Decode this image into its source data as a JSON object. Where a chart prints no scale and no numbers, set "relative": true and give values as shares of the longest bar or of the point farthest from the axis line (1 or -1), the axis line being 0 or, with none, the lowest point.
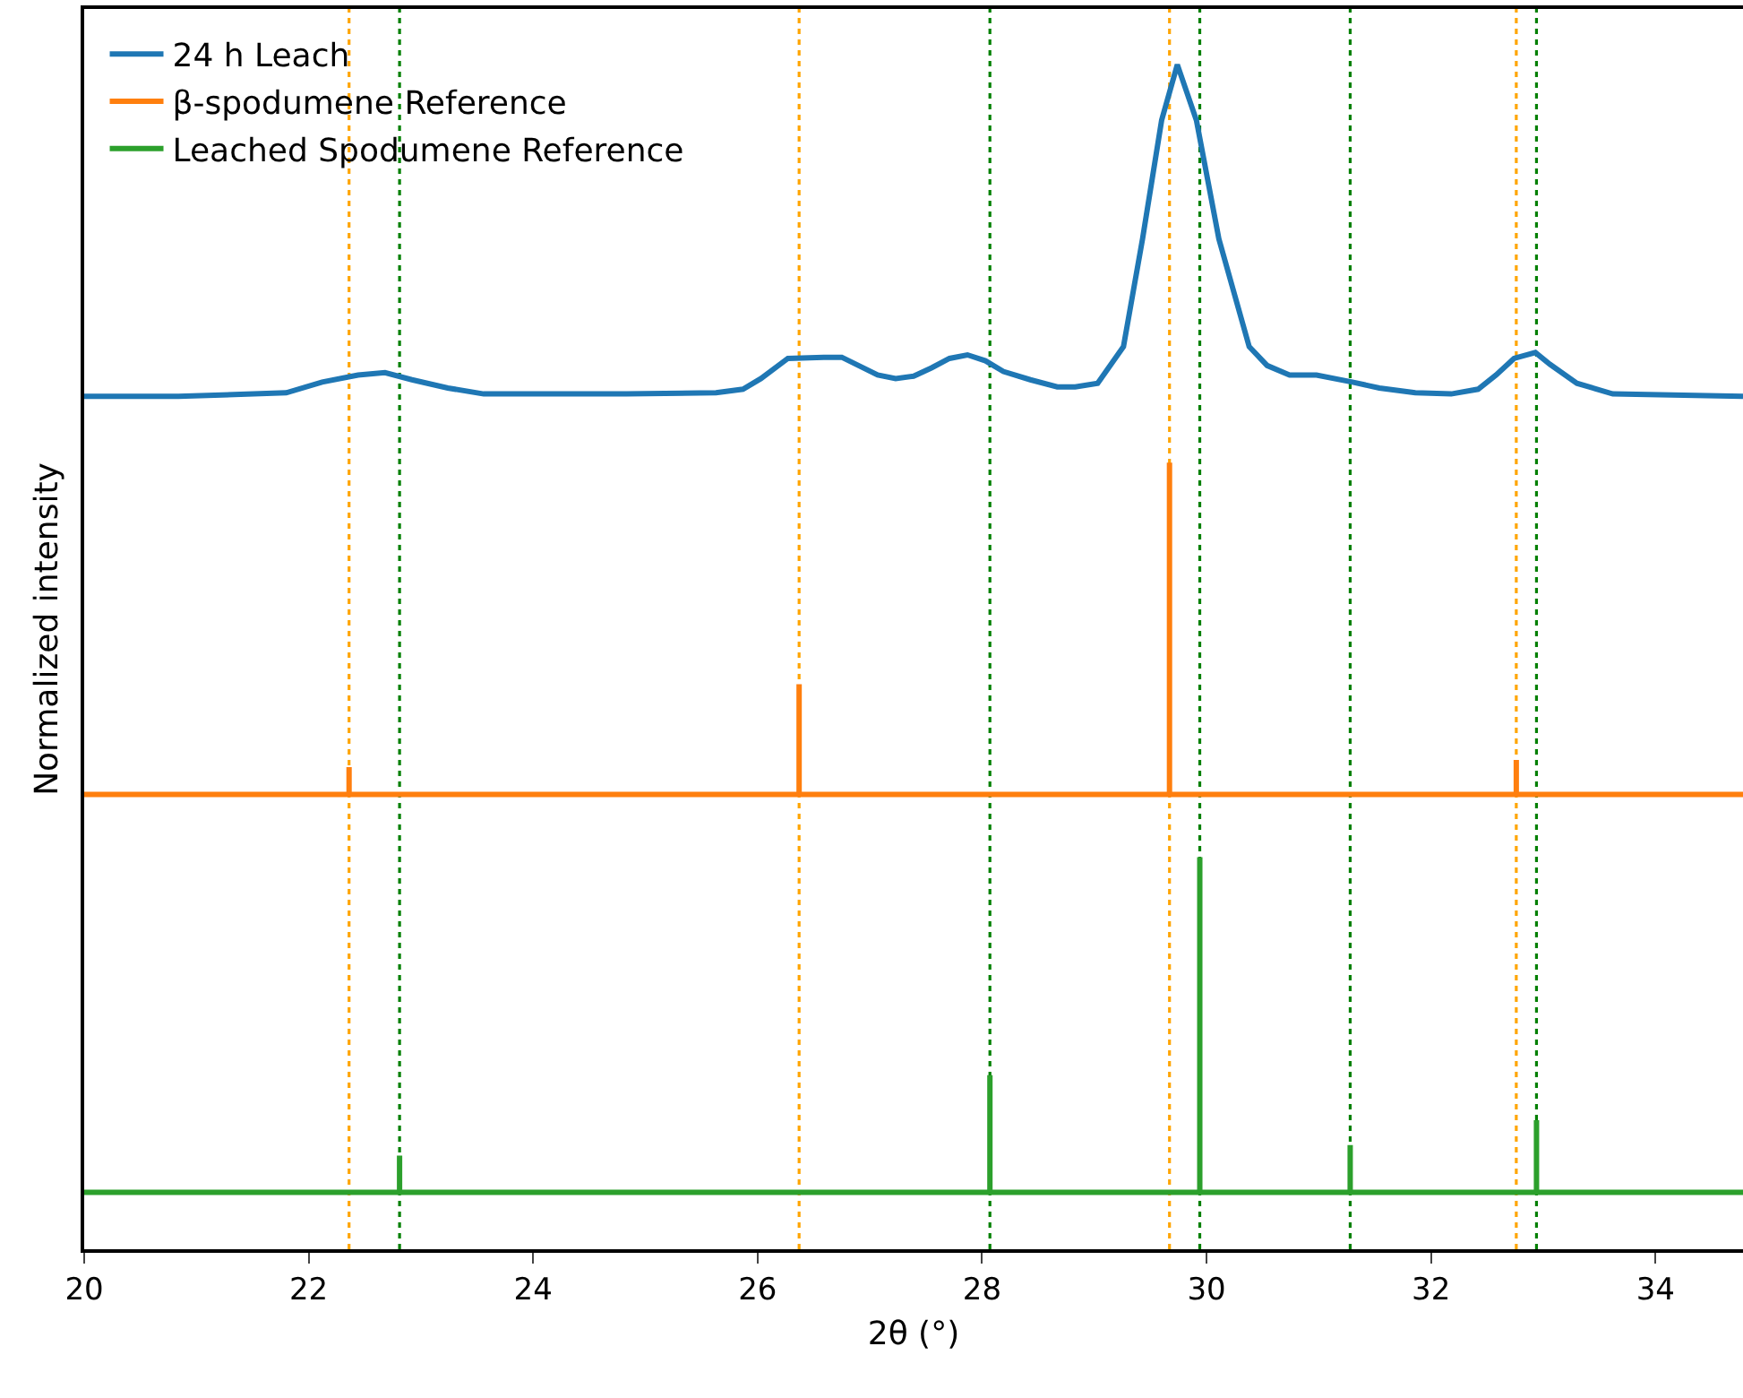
{
  "chart_data": {
    "type": "line",
    "xlabel": "2θ (°)",
    "ylabel": "Normalized intensity",
    "relative": true,
    "xlim": [
      20,
      34.78
    ],
    "xticks": [
      20,
      22,
      24,
      26,
      28,
      30,
      32,
      34
    ],
    "tick_labels": "x",
    "grid": false,
    "legend": "top left",
    "marker": "none",
    "line_style": "solid",
    "series": [
      {
        "name": "24 h Leach",
        "color": "#1f77b4",
        "x": [
          20.0,
          20.84,
          21.8,
          22.12,
          22.44,
          22.68,
          22.92,
          23.24,
          23.56,
          24.03,
          24.83,
          25.63,
          25.87,
          26.03,
          26.27,
          26.59,
          26.75,
          27.07,
          27.23,
          27.39,
          27.55,
          27.71,
          27.87,
          28.03,
          28.19,
          28.43,
          28.67,
          28.83,
          29.03,
          29.26,
          29.43,
          29.6,
          29.74,
          29.91,
          30.11,
          30.38,
          30.54,
          30.74,
          30.98,
          31.3,
          31.54,
          31.86,
          32.18,
          32.42,
          32.58,
          32.74,
          32.93,
          33.06,
          33.3,
          33.62,
          34.78
        ],
        "values": [
          0.72,
          0.72,
          0.723,
          0.732,
          0.738,
          0.74,
          0.734,
          0.727,
          0.722,
          0.722,
          0.722,
          0.723,
          0.726,
          0.735,
          0.752,
          0.753,
          0.753,
          0.738,
          0.735,
          0.737,
          0.744,
          0.752,
          0.755,
          0.75,
          0.741,
          0.734,
          0.728,
          0.728,
          0.731,
          0.762,
          0.853,
          0.953,
          1.0,
          0.953,
          0.853,
          0.762,
          0.746,
          0.738,
          0.738,
          0.732,
          0.727,
          0.723,
          0.722,
          0.726,
          0.738,
          0.752,
          0.757,
          0.747,
          0.731,
          0.722,
          0.72
        ]
      },
      {
        "name": "β-spodumene Reference",
        "color": "#ff7f0e",
        "x": [
          20,
          22.36,
          22.36,
          22.36,
          26.37,
          26.37,
          26.37,
          29.67,
          29.67,
          29.67,
          32.76,
          32.76,
          32.76,
          34.78
        ],
        "values": [
          0.384,
          0.384,
          0.407,
          0.384,
          0.384,
          0.477,
          0.384,
          0.384,
          0.664,
          0.384,
          0.384,
          0.413,
          0.384,
          0.384
        ]
      },
      {
        "name": "Leached Spodumene Reference",
        "color": "#2ca02c",
        "x": [
          20,
          22.81,
          22.81,
          22.81,
          28.07,
          28.07,
          28.07,
          29.94,
          29.94,
          29.94,
          31.28,
          31.28,
          31.28,
          32.94,
          32.94,
          32.94,
          34.78
        ],
        "values": [
          0.048,
          0.048,
          0.079,
          0.048,
          0.048,
          0.147,
          0.048,
          0.048,
          0.331,
          0.048,
          0.048,
          0.088,
          0.048,
          0.048,
          0.109,
          0.048,
          0.048
        ]
      }
    ],
    "ref_lines": [
      {
        "axis": "x",
        "value": 22.36,
        "color": "#ffa500",
        "line_style": "dotted"
      },
      {
        "axis": "x",
        "value": 26.37,
        "color": "#ffa500",
        "line_style": "dotted"
      },
      {
        "axis": "x",
        "value": 29.67,
        "color": "#ffa500",
        "line_style": "dotted"
      },
      {
        "axis": "x",
        "value": 32.76,
        "color": "#ffa500",
        "line_style": "dotted"
      },
      {
        "axis": "x",
        "value": 22.81,
        "color": "#008000",
        "line_style": "dotted"
      },
      {
        "axis": "x",
        "value": 28.07,
        "color": "#008000",
        "line_style": "dotted"
      },
      {
        "axis": "x",
        "value": 29.94,
        "color": "#008000",
        "line_style": "dotted"
      },
      {
        "axis": "x",
        "value": 31.28,
        "color": "#008000",
        "line_style": "dotted"
      },
      {
        "axis": "x",
        "value": 32.94,
        "color": "#008000",
        "line_style": "dotted"
      }
    ]
  }
}
